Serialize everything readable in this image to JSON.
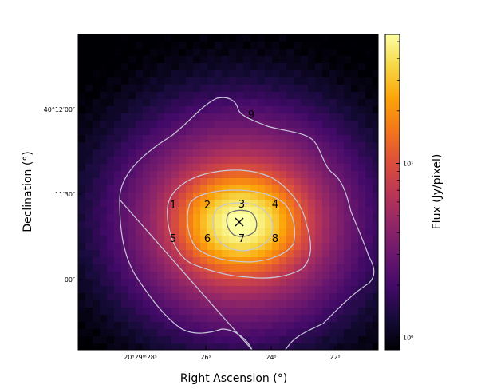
{
  "chart_data": {
    "type": "heatmap",
    "title": "",
    "xlabel": "Right Ascension (°)",
    "ylabel": "Declination (°)",
    "colorbar_label": "Flux (Jy/pixel)",
    "colormap": "inferno",
    "colorbar_scale": "log",
    "colorbar_range": [
      0.85,
      55
    ],
    "colorbar_ticks": [
      {
        "value": 1,
        "label": "10⁰"
      },
      {
        "value": 10,
        "label": "10¹"
      }
    ],
    "x_tick_labels": [
      "20ʰ29ᵐ28ˢ",
      "26ˢ",
      "24ˢ",
      "22ˢ"
    ],
    "y_tick_labels": [
      "40°12′00″",
      "11′30″",
      "00″"
    ],
    "peak_marker": "×",
    "regions": [
      {
        "label": "1",
        "color": "#000000"
      },
      {
        "label": "2",
        "color": "#000000"
      },
      {
        "label": "3",
        "color": "#000000"
      },
      {
        "label": "4",
        "color": "#000000"
      },
      {
        "label": "5",
        "color": "#000000"
      },
      {
        "label": "6",
        "color": "#000000"
      },
      {
        "label": "7",
        "color": "#000000"
      },
      {
        "label": "8",
        "color": "#000000"
      },
      {
        "label": "9",
        "color": "#ffffff"
      }
    ],
    "contour_colors": [
      "#c8c8d8",
      "#c8c8d8",
      "#c8c8d8",
      "#c8c8d8",
      "#707070"
    ]
  }
}
